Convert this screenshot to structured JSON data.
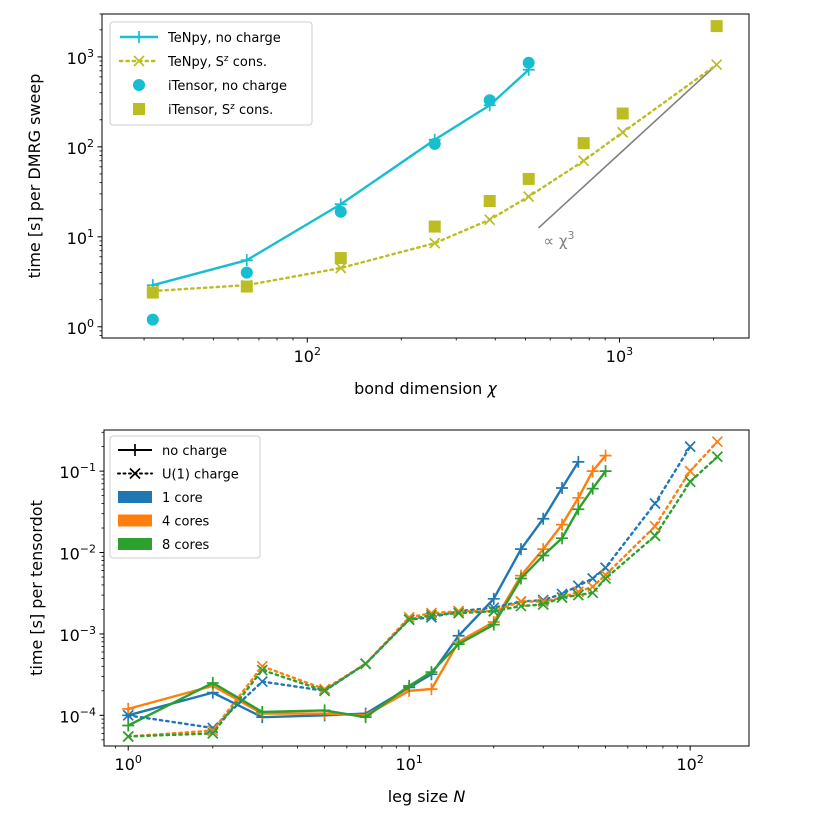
{
  "chart_data": [
    {
      "type": "line",
      "xscale": "log",
      "yscale": "log",
      "xlabel_text": "bond dimension ",
      "xlabel_symbol": "χ",
      "ylabel": "time [s] per DMRG sweep",
      "xlim": [
        22,
        2600
      ],
      "ylim": [
        0.75,
        3000
      ],
      "xticks": [
        {
          "value": 100,
          "base": "10",
          "exp": "2"
        },
        {
          "value": 1000,
          "base": "10",
          "exp": "3"
        }
      ],
      "yticks": [
        {
          "value": 1,
          "base": "10",
          "exp": "0"
        },
        {
          "value": 10,
          "base": "10",
          "exp": "1"
        },
        {
          "value": 100,
          "base": "10",
          "exp": "2"
        },
        {
          "value": 1000,
          "base": "10",
          "exp": "3"
        }
      ],
      "series": [
        {
          "name": "TeNpy, no charge",
          "label": "TeNpy, no charge",
          "label_sup": "",
          "label_post": "",
          "color": "#17becf",
          "line": "solid",
          "marker": "plus",
          "x": [
            32,
            64,
            128,
            256,
            384,
            512
          ],
          "y": [
            2.9,
            5.5,
            23,
            120,
            290,
            720
          ]
        },
        {
          "name": "TeNpy, S^z cons.",
          "label": "TeNpy, S",
          "label_sup": "z",
          "label_post": " cons.",
          "color": "#bcbd22",
          "line": "dotted",
          "marker": "x",
          "x": [
            32,
            64,
            128,
            256,
            384,
            512,
            768,
            1024,
            2048
          ],
          "y": [
            2.5,
            2.9,
            4.5,
            8.5,
            15.5,
            28,
            70,
            145,
            820
          ]
        },
        {
          "name": "iTensor, no charge",
          "label": "iTensor, no charge",
          "label_sup": "",
          "label_post": "",
          "color": "#17becf",
          "line": "none",
          "marker": "circle",
          "x": [
            32,
            64,
            128,
            256,
            384,
            512
          ],
          "y": [
            1.2,
            4,
            19,
            108,
            330,
            860
          ]
        },
        {
          "name": "iTensor, S^z cons.",
          "label": "iTensor, S",
          "label_sup": "z",
          "label_post": " cons.",
          "color": "#bcbd22",
          "line": "none",
          "marker": "square",
          "x": [
            32,
            64,
            128,
            256,
            384,
            512,
            768,
            1024,
            2048
          ],
          "y": [
            2.4,
            2.8,
            5.8,
            13,
            25,
            44,
            110,
            235,
            2200
          ]
        }
      ],
      "reference": {
        "label": "∝ χ",
        "label_sup": "3",
        "color": "#808080",
        "x": [
          550,
          2048
        ],
        "y": [
          12.5,
          820
        ]
      }
    },
    {
      "type": "line",
      "xscale": "log",
      "yscale": "log",
      "xlabel_text": "leg size ",
      "xlabel_symbol": "N",
      "ylabel": "time [s] per tensordot",
      "xlim": [
        0.82,
        162
      ],
      "ylim": [
        4.2e-05,
        0.32
      ],
      "xticks": [
        {
          "value": 1,
          "base": "10",
          "exp": "0"
        },
        {
          "value": 10,
          "base": "10",
          "exp": "1"
        },
        {
          "value": 100,
          "base": "10",
          "exp": "2"
        }
      ],
      "yticks": [
        {
          "value": 0.0001,
          "base": "10",
          "exp": "−4"
        },
        {
          "value": 0.001,
          "base": "10",
          "exp": "−3"
        },
        {
          "value": 0.01,
          "base": "10",
          "exp": "−2"
        },
        {
          "value": 0.1,
          "base": "10",
          "exp": "−1"
        }
      ],
      "legend": [
        {
          "label": "no charge",
          "kind": "plus"
        },
        {
          "label": "U(1) charge",
          "kind": "x"
        },
        {
          "label": "1 core",
          "kind": "patch",
          "color": "#1f77b4"
        },
        {
          "label": "4 cores",
          "kind": "patch",
          "color": "#ff7f0e"
        },
        {
          "label": "8 cores",
          "kind": "patch",
          "color": "#2ca02c"
        }
      ],
      "series": [
        {
          "name": "1 core, no charge",
          "color": "#1f77b4",
          "line": "solid",
          "marker": "plus",
          "x": [
            1,
            2,
            3,
            5,
            7,
            10,
            12,
            15,
            20,
            25,
            30,
            35,
            40
          ],
          "y": [
            0.0001,
            0.00019,
            9.5e-05,
            0.0001,
            0.000105,
            0.00022,
            0.00032,
            0.00095,
            0.0027,
            0.011,
            0.026,
            0.062,
            0.13
          ]
        },
        {
          "name": "4 cores, no charge",
          "color": "#ff7f0e",
          "line": "solid",
          "marker": "plus",
          "x": [
            1,
            2,
            3,
            5,
            7,
            10,
            12,
            15,
            20,
            25,
            30,
            35,
            40,
            45,
            50
          ],
          "y": [
            0.00012,
            0.00023,
            0.000105,
            0.000105,
            0.0001,
            0.0002,
            0.00021,
            0.0008,
            0.0014,
            0.0052,
            0.011,
            0.022,
            0.047,
            0.1,
            0.155
          ]
        },
        {
          "name": "8 cores, no charge",
          "color": "#2ca02c",
          "line": "solid",
          "marker": "plus",
          "x": [
            1,
            2,
            3,
            5,
            7,
            10,
            12,
            15,
            20,
            25,
            30,
            35,
            40,
            45,
            50
          ],
          "y": [
            7.5e-05,
            0.00025,
            0.00011,
            0.000115,
            9.5e-05,
            0.00023,
            0.00034,
            0.00075,
            0.0013,
            0.0048,
            0.0092,
            0.015,
            0.034,
            0.061,
            0.1
          ]
        },
        {
          "name": "1 core, U(1) charge",
          "color": "#1f77b4",
          "line": "dotted",
          "marker": "x",
          "x": [
            1,
            2,
            3,
            5,
            7,
            10,
            12,
            15,
            20,
            25,
            30,
            35,
            40,
            45,
            50,
            75,
            100
          ],
          "y": [
            0.0001,
            7e-05,
            0.00026,
            0.0002,
            0.00043,
            0.0015,
            0.0016,
            0.0019,
            0.0021,
            0.0025,
            0.0026,
            0.0031,
            0.0039,
            0.0048,
            0.0065,
            0.04,
            0.2
          ]
        },
        {
          "name": "4 cores, U(1) charge",
          "color": "#ff7f0e",
          "line": "dotted",
          "marker": "x",
          "x": [
            1,
            2,
            3,
            5,
            7,
            10,
            12,
            15,
            20,
            25,
            30,
            35,
            40,
            45,
            50,
            75,
            100,
            125
          ],
          "y": [
            5.5e-05,
            6.5e-05,
            0.0004,
            0.00021,
            0.00043,
            0.0016,
            0.0018,
            0.0019,
            0.0019,
            0.0025,
            0.0025,
            0.0028,
            0.0033,
            0.0038,
            0.0053,
            0.021,
            0.1,
            0.23
          ]
        },
        {
          "name": "8 cores, U(1) charge",
          "color": "#2ca02c",
          "line": "dotted",
          "marker": "x",
          "x": [
            1,
            2,
            3,
            5,
            7,
            10,
            12,
            15,
            20,
            25,
            30,
            35,
            40,
            45,
            50,
            75,
            100,
            125
          ],
          "y": [
            5.5e-05,
            6e-05,
            0.00036,
            0.0002,
            0.00043,
            0.0015,
            0.0017,
            0.0018,
            0.0019,
            0.0022,
            0.0023,
            0.0028,
            0.003,
            0.0032,
            0.0048,
            0.016,
            0.074,
            0.15
          ]
        }
      ]
    }
  ]
}
